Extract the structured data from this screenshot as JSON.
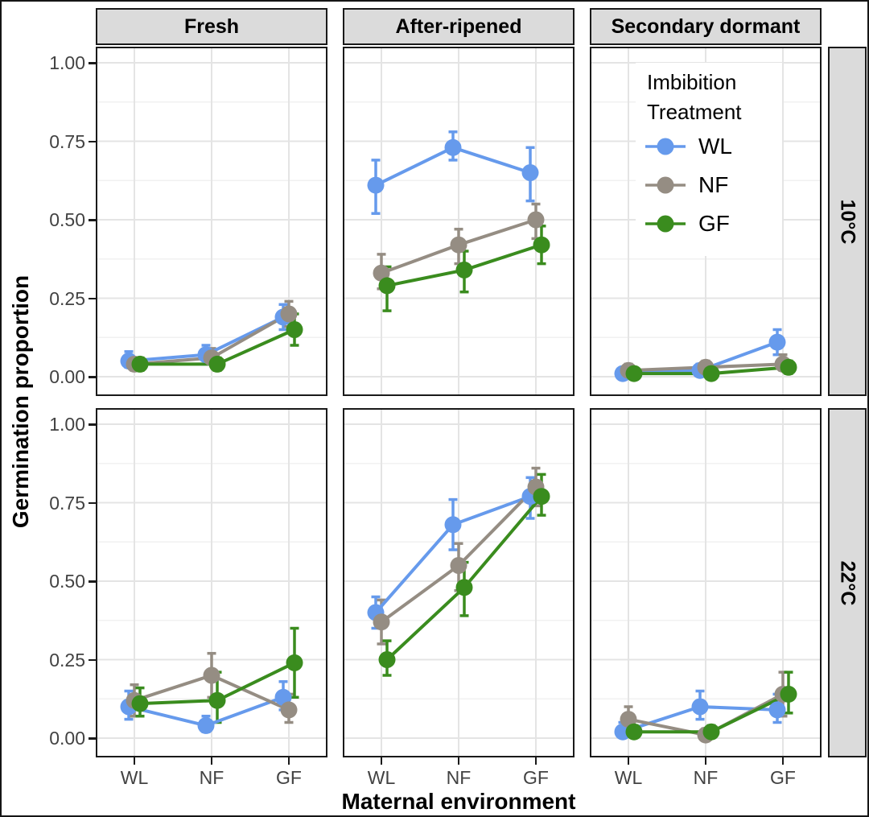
{
  "figure": {
    "x_axis_title": "Maternal environment",
    "y_axis_title": "Germination proportion",
    "y_tick_labels": [
      "1.00",
      "0.75",
      "0.50",
      "0.25",
      "0.00"
    ],
    "x_tick_labels": [
      "WL",
      "NF",
      "GF"
    ]
  },
  "facets": {
    "columns": [
      "Fresh",
      "After-ripened",
      "Secondary dormant"
    ],
    "rows": [
      "10°C",
      "22°C"
    ]
  },
  "legend": {
    "title_line1": "Imbibition",
    "title_line2": "Treatment",
    "entries": [
      {
        "label": "WL",
        "color": "#669aec"
      },
      {
        "label": "NF",
        "color": "#958d83"
      },
      {
        "label": "GF",
        "color": "#3a8c1e"
      }
    ]
  },
  "colors": {
    "strip_bg": "#dbdbdb",
    "panel_border": "#1a1a1a",
    "grid_major": "#e4e4e4",
    "grid_minor": "#f1f1f1",
    "tick_label": "#424242",
    "series": {
      "WL": "#669aec",
      "NF": "#958d83",
      "GF": "#3a8c1e"
    }
  },
  "chart_data": {
    "type": "line",
    "title": "",
    "xlabel": "Maternal environment",
    "ylabel": "Germination proportion",
    "x_categories": [
      "WL",
      "NF",
      "GF"
    ],
    "ylim": [
      0,
      1
    ],
    "y_major_ticks": [
      1.0,
      0.75,
      0.5,
      0.25,
      0.0
    ],
    "y_minor_ticks": [
      0.125,
      0.375,
      0.625,
      0.875
    ],
    "grid": "on",
    "legend_title": "Imbibition Treatment",
    "legend_position": "inside-top-right-panel",
    "point_style": "circle-with-errorbars-connected-by-lines",
    "facet_grid": {
      "columns": [
        "Fresh",
        "After-ripened",
        "Secondary dormant"
      ],
      "rows": [
        "10°C",
        "22°C"
      ]
    },
    "series_names": [
      "WL",
      "NF",
      "GF"
    ],
    "panels": [
      {
        "facet_row": "10°C",
        "facet_col": "Fresh",
        "series": [
          {
            "name": "WL",
            "values": [
              0.05,
              0.07,
              0.19
            ],
            "err_low": [
              0.03,
              0.04,
              0.15
            ],
            "err_high": [
              0.08,
              0.1,
              0.23
            ]
          },
          {
            "name": "NF",
            "values": [
              0.04,
              0.06,
              0.2
            ],
            "err_low": [
              0.02,
              0.04,
              0.16
            ],
            "err_high": [
              0.06,
              0.09,
              0.24
            ]
          },
          {
            "name": "GF",
            "values": [
              0.04,
              0.04,
              0.15
            ],
            "err_low": [
              0.02,
              0.02,
              0.1
            ],
            "err_high": [
              0.06,
              0.06,
              0.2
            ]
          }
        ]
      },
      {
        "facet_row": "10°C",
        "facet_col": "After-ripened",
        "series": [
          {
            "name": "WL",
            "values": [
              0.61,
              0.73,
              0.65
            ],
            "err_low": [
              0.52,
              0.69,
              0.56
            ],
            "err_high": [
              0.69,
              0.78,
              0.73
            ]
          },
          {
            "name": "NF",
            "values": [
              0.33,
              0.42,
              0.5
            ],
            "err_low": [
              0.28,
              0.36,
              0.44
            ],
            "err_high": [
              0.39,
              0.47,
              0.55
            ]
          },
          {
            "name": "GF",
            "values": [
              0.29,
              0.34,
              0.42
            ],
            "err_low": [
              0.21,
              0.27,
              0.36
            ],
            "err_high": [
              0.35,
              0.4,
              0.48
            ]
          }
        ]
      },
      {
        "facet_row": "10°C",
        "facet_col": "Secondary dormant",
        "series": [
          {
            "name": "WL",
            "values": [
              0.01,
              0.02,
              0.11
            ],
            "err_low": [
              0.0,
              0.01,
              0.07
            ],
            "err_high": [
              0.02,
              0.04,
              0.15
            ]
          },
          {
            "name": "NF",
            "values": [
              0.02,
              0.03,
              0.04
            ],
            "err_low": [
              0.01,
              0.01,
              0.02
            ],
            "err_high": [
              0.04,
              0.05,
              0.07
            ]
          },
          {
            "name": "GF",
            "values": [
              0.01,
              0.01,
              0.03
            ],
            "err_low": [
              0.0,
              0.0,
              0.01
            ],
            "err_high": [
              0.02,
              0.02,
              0.05
            ]
          }
        ]
      },
      {
        "facet_row": "22°C",
        "facet_col": "Fresh",
        "series": [
          {
            "name": "WL",
            "values": [
              0.1,
              0.04,
              0.13
            ],
            "err_low": [
              0.06,
              0.02,
              0.09
            ],
            "err_high": [
              0.15,
              0.07,
              0.18
            ]
          },
          {
            "name": "NF",
            "values": [
              0.12,
              0.2,
              0.09
            ],
            "err_low": [
              0.07,
              0.13,
              0.05
            ],
            "err_high": [
              0.17,
              0.27,
              0.14
            ]
          },
          {
            "name": "GF",
            "values": [
              0.11,
              0.12,
              0.24
            ],
            "err_low": [
              0.07,
              0.05,
              0.13
            ],
            "err_high": [
              0.16,
              0.21,
              0.35
            ]
          }
        ]
      },
      {
        "facet_row": "22°C",
        "facet_col": "After-ripened",
        "series": [
          {
            "name": "WL",
            "values": [
              0.4,
              0.68,
              0.77
            ],
            "err_low": [
              0.35,
              0.6,
              0.7
            ],
            "err_high": [
              0.45,
              0.76,
              0.83
            ]
          },
          {
            "name": "NF",
            "values": [
              0.37,
              0.55,
              0.8
            ],
            "err_low": [
              0.3,
              0.47,
              0.74
            ],
            "err_high": [
              0.44,
              0.62,
              0.86
            ]
          },
          {
            "name": "GF",
            "values": [
              0.25,
              0.48,
              0.77
            ],
            "err_low": [
              0.2,
              0.39,
              0.71
            ],
            "err_high": [
              0.31,
              0.56,
              0.84
            ]
          }
        ]
      },
      {
        "facet_row": "22°C",
        "facet_col": "Secondary dormant",
        "series": [
          {
            "name": "WL",
            "values": [
              0.02,
              0.1,
              0.09
            ],
            "err_low": [
              0.01,
              0.06,
              0.05
            ],
            "err_high": [
              0.05,
              0.15,
              0.14
            ]
          },
          {
            "name": "NF",
            "values": [
              0.06,
              0.01,
              0.14
            ],
            "err_low": [
              0.03,
              0.0,
              0.07
            ],
            "err_high": [
              0.1,
              0.03,
              0.21
            ]
          },
          {
            "name": "GF",
            "values": [
              0.02,
              0.02,
              0.14
            ],
            "err_low": [
              0.01,
              0.01,
              0.08
            ],
            "err_high": [
              0.04,
              0.04,
              0.21
            ]
          }
        ]
      }
    ]
  }
}
